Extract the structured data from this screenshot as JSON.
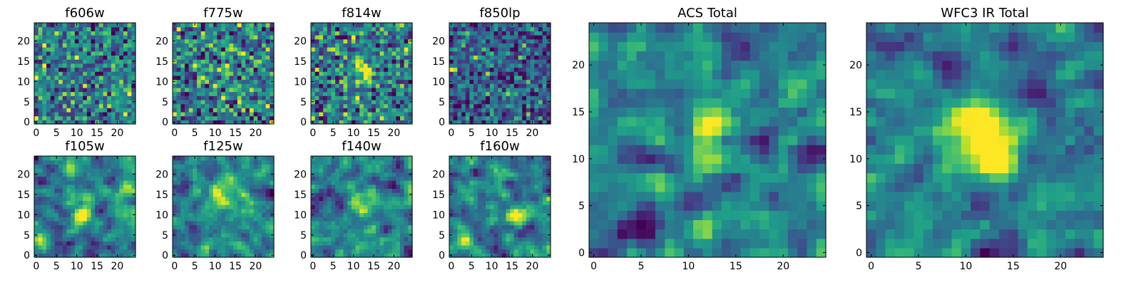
{
  "chart_data": [
    {
      "type": "heatmap",
      "title": "f606w",
      "seed": 1606,
      "colormap": "viridis",
      "xlim": [
        -0.5,
        24.5
      ],
      "ylim": [
        -0.5,
        24.5
      ],
      "xticks": [
        0,
        5,
        10,
        15,
        20
      ],
      "yticks": [
        0,
        5,
        10,
        15,
        20
      ],
      "smooth": 0,
      "gain": 0.22,
      "noise": 1.0,
      "blobs": []
    },
    {
      "type": "heatmap",
      "title": "f775w",
      "seed": 1775,
      "colormap": "viridis",
      "xlim": [
        -0.5,
        24.5
      ],
      "ylim": [
        -0.5,
        24.5
      ],
      "xticks": [
        0,
        5,
        10,
        15,
        20
      ],
      "yticks": [
        0,
        5,
        10,
        15,
        20
      ],
      "smooth": 0,
      "gain": 0.24,
      "noise": 1.0,
      "blobs": [
        {
          "x": 12,
          "y": 13,
          "a": 1.2,
          "s": 1.0
        }
      ]
    },
    {
      "type": "heatmap",
      "title": "f814w",
      "seed": 1814,
      "colormap": "viridis",
      "xlim": [
        -0.5,
        24.5
      ],
      "ylim": [
        -0.5,
        24.5
      ],
      "xticks": [
        0,
        5,
        10,
        15,
        20
      ],
      "yticks": [
        0,
        5,
        10,
        15,
        20
      ],
      "smooth": 0,
      "gain": 0.22,
      "noise": 1.0,
      "blobs": [
        {
          "x": 12,
          "y": 14,
          "a": 1.1,
          "s": 1.3
        },
        {
          "x": 13,
          "y": 11,
          "a": 1.0,
          "s": 1.3
        }
      ]
    },
    {
      "type": "heatmap",
      "title": "f850lp",
      "seed": 1850,
      "colormap": "viridis",
      "xlim": [
        -0.5,
        24.5
      ],
      "ylim": [
        -0.5,
        24.5
      ],
      "xticks": [
        0,
        5,
        10,
        15,
        20
      ],
      "yticks": [
        0,
        5,
        10,
        15,
        20
      ],
      "smooth": 0,
      "gain": 0.2,
      "noise": 1.0,
      "offset": -0.12,
      "blobs": [
        {
          "x": 0,
          "y": 13,
          "a": 1.8,
          "s": 0.6
        }
      ]
    },
    {
      "type": "heatmap",
      "title": "f105w",
      "seed": 2105,
      "colormap": "viridis",
      "xlim": [
        -0.5,
        24.5
      ],
      "ylim": [
        -0.5,
        24.5
      ],
      "xticks": [
        0,
        5,
        10,
        15,
        20
      ],
      "yticks": [
        0,
        5,
        10,
        15,
        20
      ],
      "smooth": 1,
      "gain": 0.2,
      "noise": 1.0,
      "blobs": [
        {
          "x": 12,
          "y": 10,
          "a": 1.2,
          "s": 1.6
        },
        {
          "x": 22,
          "y": 16,
          "a": 0.8,
          "s": 1.5
        },
        {
          "x": 1,
          "y": 4,
          "a": 1.0,
          "s": 1.0
        }
      ]
    },
    {
      "type": "heatmap",
      "title": "f125w",
      "seed": 2125,
      "colormap": "viridis",
      "xlim": [
        -0.5,
        24.5
      ],
      "ylim": [
        -0.5,
        24.5
      ],
      "xticks": [
        0,
        5,
        10,
        15,
        20
      ],
      "yticks": [
        0,
        5,
        10,
        15,
        20
      ],
      "smooth": 1,
      "gain": 0.2,
      "noise": 1.0,
      "blobs": [
        {
          "x": 11,
          "y": 15,
          "a": 1.2,
          "s": 1.8
        },
        {
          "x": 8,
          "y": 2,
          "a": 0.8,
          "s": 1.5
        }
      ]
    },
    {
      "type": "heatmap",
      "title": "f140w",
      "seed": 2140,
      "colormap": "viridis",
      "xlim": [
        -0.5,
        24.5
      ],
      "ylim": [
        -0.5,
        24.5
      ],
      "xticks": [
        0,
        5,
        10,
        15,
        20
      ],
      "yticks": [
        0,
        5,
        10,
        15,
        20
      ],
      "smooth": 1,
      "gain": 0.2,
      "noise": 1.0,
      "blobs": [
        {
          "x": 13,
          "y": 12,
          "a": 1.1,
          "s": 1.8
        }
      ]
    },
    {
      "type": "heatmap",
      "title": "f160w",
      "seed": 2160,
      "colormap": "viridis",
      "xlim": [
        -0.5,
        24.5
      ],
      "ylim": [
        -0.5,
        24.5
      ],
      "xticks": [
        0,
        5,
        10,
        15,
        20
      ],
      "yticks": [
        0,
        5,
        10,
        15,
        20
      ],
      "smooth": 1,
      "gain": 0.2,
      "noise": 1.0,
      "blobs": [
        {
          "x": 16,
          "y": 10,
          "a": 1.1,
          "s": 1.6
        },
        {
          "x": 3,
          "y": 4,
          "a": 0.7,
          "s": 1.5
        }
      ]
    },
    {
      "type": "heatmap",
      "title": "ACS Total",
      "seed": 3001,
      "colormap": "viridis",
      "xlim": [
        -0.5,
        24.5
      ],
      "ylim": [
        -0.5,
        24.5
      ],
      "xticks": [
        0,
        5,
        10,
        15,
        20
      ],
      "yticks": [
        0,
        5,
        10,
        15,
        20
      ],
      "smooth": 1,
      "gain": 0.2,
      "noise": 1.0,
      "blobs": [
        {
          "x": 12,
          "y": 13.5,
          "a": 1.3,
          "s": 1.3
        },
        {
          "x": 14,
          "y": 14,
          "a": 0.7,
          "s": 1.0
        }
      ]
    },
    {
      "type": "heatmap",
      "title": "WFC3 IR Total",
      "seed": 3002,
      "colormap": "viridis",
      "xlim": [
        -0.5,
        24.5
      ],
      "ylim": [
        -0.5,
        24.5
      ],
      "xticks": [
        0,
        5,
        10,
        15,
        20
      ],
      "yticks": [
        0,
        5,
        10,
        15,
        20
      ],
      "smooth": 1,
      "gain": 0.2,
      "noise": 1.0,
      "blobs": [
        {
          "x": 12.5,
          "y": 11.5,
          "a": 1.5,
          "s": 2.4
        },
        {
          "x": 9,
          "y": 14,
          "a": 0.6,
          "s": 1.5
        }
      ]
    }
  ]
}
